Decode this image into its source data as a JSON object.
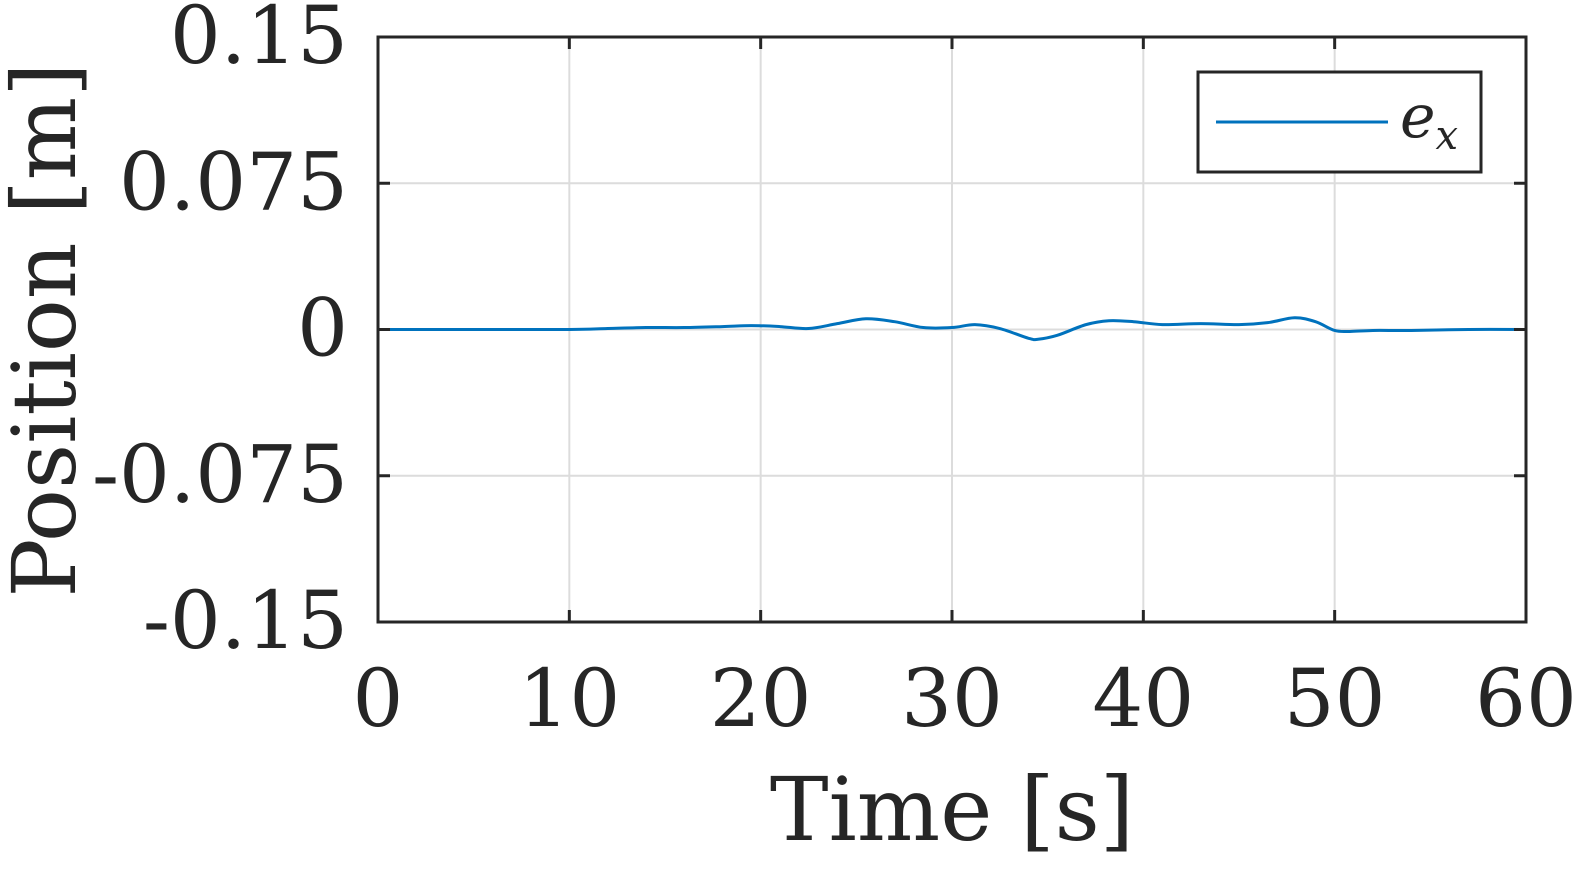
{
  "chart_data": {
    "type": "line",
    "xlabel": "Time [s]",
    "ylabel": "Position [m]",
    "xlim": [
      0,
      60
    ],
    "ylim": [
      -0.15,
      0.15
    ],
    "xticks": [
      0,
      10,
      20,
      30,
      40,
      50,
      60
    ],
    "xtick_labels": [
      "0",
      "10",
      "20",
      "30",
      "40",
      "50",
      "60"
    ],
    "yticks": [
      0.15,
      0.075,
      0,
      -0.075,
      -0.15
    ],
    "ytick_labels": [
      "0.15",
      "0.075",
      "0",
      "-0.075",
      "-0.15"
    ],
    "grid": true,
    "legend": {
      "position": "top-right",
      "entries": [
        {
          "base": "e",
          "sub": "x"
        }
      ]
    },
    "series": [
      {
        "name": "e_x",
        "color": "#0072BD",
        "x": [
          0,
          5,
          10,
          12,
          14,
          16,
          18,
          19.5,
          21,
          22.5,
          24,
          25.5,
          27,
          28.5,
          30,
          31.2,
          32.5,
          34,
          34.5,
          35.5,
          37,
          38.2,
          39.5,
          41,
          43,
          45,
          46.5,
          47.9,
          49,
          50,
          50.8,
          52,
          54,
          57,
          60
        ],
        "y": [
          0,
          0,
          0,
          0.0005,
          0.001,
          0.001,
          0.0015,
          0.002,
          0.0015,
          0.0005,
          0.003,
          0.0055,
          0.004,
          0.001,
          0.001,
          0.0025,
          0.0005,
          -0.0045,
          -0.005,
          -0.003,
          0.0025,
          0.0045,
          0.004,
          0.0025,
          0.003,
          0.0025,
          0.0035,
          0.006,
          0.004,
          -0.0005,
          -0.001,
          -0.0005,
          -0.0005,
          0,
          0
        ]
      }
    ]
  }
}
